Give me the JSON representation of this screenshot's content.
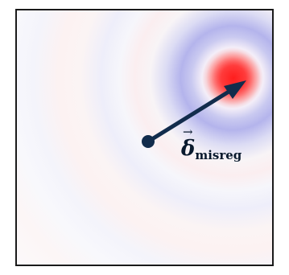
{
  "figure": {
    "label_main": "δ",
    "label_vector_mark": "→",
    "label_subscript": "misreg",
    "colors": {
      "frame": "#1a1a1a",
      "arrow": "#122c4c",
      "hotspot_positive": "#ff1e1e",
      "ring_negative": "#8a8ae6",
      "ring_positive": "#f2b4b4",
      "background": "#fdfdfd"
    },
    "icons": {
      "arrow": "arrow-right-up-icon",
      "origin": "dot-icon"
    }
  }
}
